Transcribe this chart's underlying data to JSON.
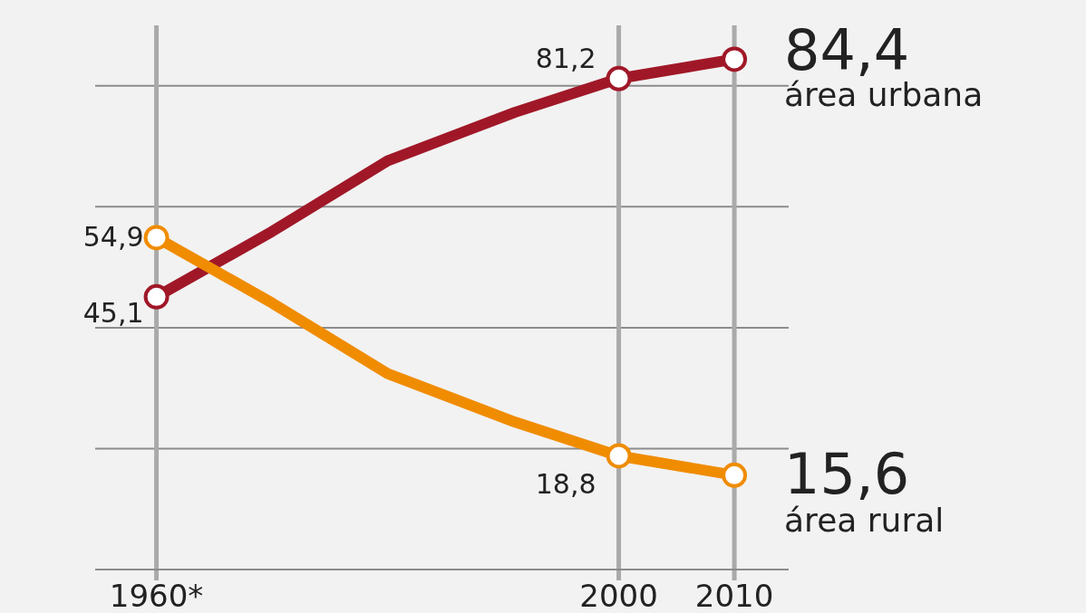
{
  "chart_data": {
    "type": "line",
    "x": [
      1960,
      1970,
      1980,
      1991,
      2000,
      2010
    ],
    "series": [
      {
        "name": "área urbana",
        "color": "#a01828",
        "marker": "none",
        "values": [
          45.1,
          55.9,
          67.6,
          75.6,
          81.2,
          84.4
        ]
      },
      {
        "name": "área rural",
        "color": "#f08c00",
        "marker": "none",
        "values": [
          54.9,
          44.1,
          32.4,
          24.4,
          18.8,
          15.6
        ]
      },
      {
        "type": "scatter",
        "marker": "circle",
        "color": "#a01828",
        "x": [
          1960,
          2000,
          2010
        ],
        "values": [
          45.1,
          81.2,
          84.4
        ],
        "value_labels": [
          "45,1",
          "81,2",
          "84,4"
        ]
      },
      {
        "type": "scatter",
        "marker": "circle",
        "color": "#f08c00",
        "x": [
          1960,
          2000,
          2010
        ],
        "values": [
          54.9,
          18.8,
          15.6
        ],
        "value_labels": [
          "54,9",
          "18,8",
          "15,6"
        ]
      }
    ],
    "xlim": [
      1954.7,
      2014.7
    ],
    "xticks": [
      {
        "value": 1960,
        "label": "1960*"
      },
      2000,
      2010
    ],
    "ylim": [
      0,
      90
    ],
    "yticks": [
      {
        "value": 0,
        "label": null
      },
      {
        "value": 20,
        "label": null
      },
      {
        "value": 40,
        "label": null
      },
      {
        "value": 60,
        "label": null
      },
      {
        "value": 80,
        "label": null
      }
    ],
    "grid": true,
    "tick_labels": "x",
    "line_style": "solid"
  }
}
